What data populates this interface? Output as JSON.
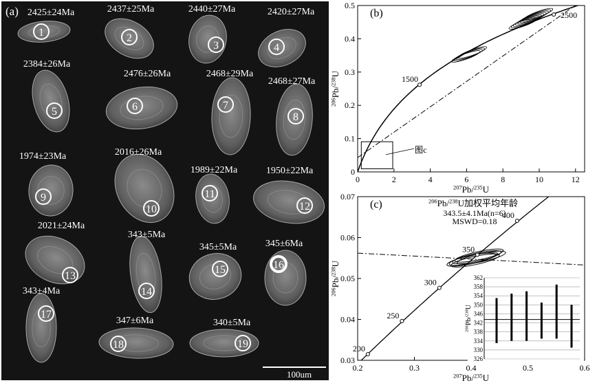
{
  "panel_a": {
    "label": "(a)",
    "scale_label": "100um",
    "grains": [
      {
        "num": "1",
        "age": "2425±24Ma"
      },
      {
        "num": "2",
        "age": "2437±25Ma"
      },
      {
        "num": "3",
        "age": "2440±27Ma"
      },
      {
        "num": "4",
        "age": "2420±27Ma"
      },
      {
        "num": "5",
        "age": "2384±26Ma"
      },
      {
        "num": "6",
        "age": "2476±26Ma"
      },
      {
        "num": "7",
        "age": "2468±29Ma"
      },
      {
        "num": "8",
        "age": "2468±27Ma"
      },
      {
        "num": "9",
        "age": "1974±23Ma"
      },
      {
        "num": "10",
        "age": "2016±26Ma"
      },
      {
        "num": "11",
        "age": "1989±22Ma"
      },
      {
        "num": "12",
        "age": "1950±22Ma"
      },
      {
        "num": "13",
        "age": "2021±24Ma"
      },
      {
        "num": "14",
        "age": "343±5Ma"
      },
      {
        "num": "15",
        "age": "345±5Ma"
      },
      {
        "num": "16",
        "age": "345±6Ma"
      },
      {
        "num": "17",
        "age": "343±4Ma"
      },
      {
        "num": "18",
        "age": "347±6Ma"
      },
      {
        "num": "19",
        "age": "340±5Ma"
      }
    ]
  },
  "chart_data": [
    {
      "type": "scatter",
      "panel_label": "(b)",
      "xlim": [
        0,
        12.5
      ],
      "ylim": [
        0,
        0.5
      ],
      "x_ticks": [
        "0",
        "2",
        "4",
        "6",
        "8",
        "10",
        "12"
      ],
      "y_ticks": [
        "0",
        "0.1",
        "0.2",
        "0.3",
        "0.4",
        "0.5"
      ],
      "xlabel_sup": "207",
      "xlabel_main": "Pb/",
      "xlabel_sup2": "235",
      "xlabel_end": "U",
      "ylabel_sup": "206",
      "ylabel_main": "Pb/",
      "ylabel_sup2": "238",
      "ylabel_end": "U",
      "concordia_labels": [
        {
          "age": 1500,
          "label": "1500",
          "x": 3.41,
          "y": 0.262
        },
        {
          "age": 2500,
          "label": "2500",
          "x": 10.8,
          "y": 0.473
        }
      ],
      "discordia": {
        "intercepts": [
          0.34,
          0.055
        ],
        "slope": 0.0385
      },
      "ellipse_clusters": [
        {
          "cx": 6.2,
          "cy": 0.355,
          "n": 4
        },
        {
          "cx": 9.6,
          "cy": 0.462,
          "n": 8
        }
      ],
      "annotation": "图c",
      "inset_box": {
        "x0": 0.2,
        "x1": 1.25,
        "y0": 0.03,
        "y1": 0.07
      }
    },
    {
      "type": "scatter",
      "panel_label": "(c)",
      "xlim": [
        0.2,
        0.6
      ],
      "ylim": [
        0.03,
        0.07
      ],
      "x_ticks": [
        "0.2",
        "0.3",
        "0.4",
        "0.5",
        "0.6"
      ],
      "y_ticks": [
        "0.03",
        "0.04",
        "0.05",
        "0.06",
        "0.07"
      ],
      "xlabel_sup": "207",
      "xlabel_main": "Pb/",
      "xlabel_sup2": "235",
      "xlabel_end": "U",
      "ylabel_sup": "206",
      "ylabel_main": "Pb/",
      "ylabel_sup2": "238",
      "ylabel_end": "U",
      "title_sup": "206",
      "title_mid": "Pb/",
      "title_sup2": "238",
      "title_end": "U加权平均年龄",
      "result": "343.5±4.1Ma(n=6)",
      "mswd": "MSWD=0.18",
      "concordia_labels": [
        {
          "age": 200,
          "label": "200",
          "x": 0.218,
          "y": 0.0315
        },
        {
          "age": 250,
          "label": "250",
          "x": 0.278,
          "y": 0.0396
        },
        {
          "age": 300,
          "label": "300",
          "x": 0.344,
          "y": 0.0477
        },
        {
          "age": 350,
          "label": "350",
          "x": 0.411,
          "y": 0.0558
        },
        {
          "age": 400,
          "label": "400",
          "x": 0.481,
          "y": 0.0641
        }
      ],
      "ellipses": [
        {
          "cx": 0.404,
          "cy": 0.0548
        },
        {
          "cx": 0.41,
          "cy": 0.0552
        },
        {
          "cx": 0.418,
          "cy": 0.0551
        },
        {
          "cx": 0.4,
          "cy": 0.0546
        },
        {
          "cx": 0.414,
          "cy": 0.0556
        },
        {
          "cx": 0.407,
          "cy": 0.0544
        }
      ],
      "inset": {
        "ylabel_sup": "206",
        "ylabel_main": "Pb/",
        "ylabel_sup2": "238",
        "ylabel_end": "U",
        "ylim": [
          326,
          362
        ],
        "y_ticks": [
          "326",
          "330",
          "334",
          "338",
          "342",
          "346",
          "350",
          "354",
          "358",
          "362"
        ],
        "mean": 343.5,
        "bars": [
          {
            "age": 343,
            "low": 333,
            "high": 353
          },
          {
            "age": 345,
            "low": 334,
            "high": 355
          },
          {
            "age": 345,
            "low": 334,
            "high": 356
          },
          {
            "age": 343,
            "low": 335,
            "high": 351
          },
          {
            "age": 347,
            "low": 335,
            "high": 359
          },
          {
            "age": 340,
            "low": 331,
            "high": 350
          }
        ]
      }
    }
  ]
}
